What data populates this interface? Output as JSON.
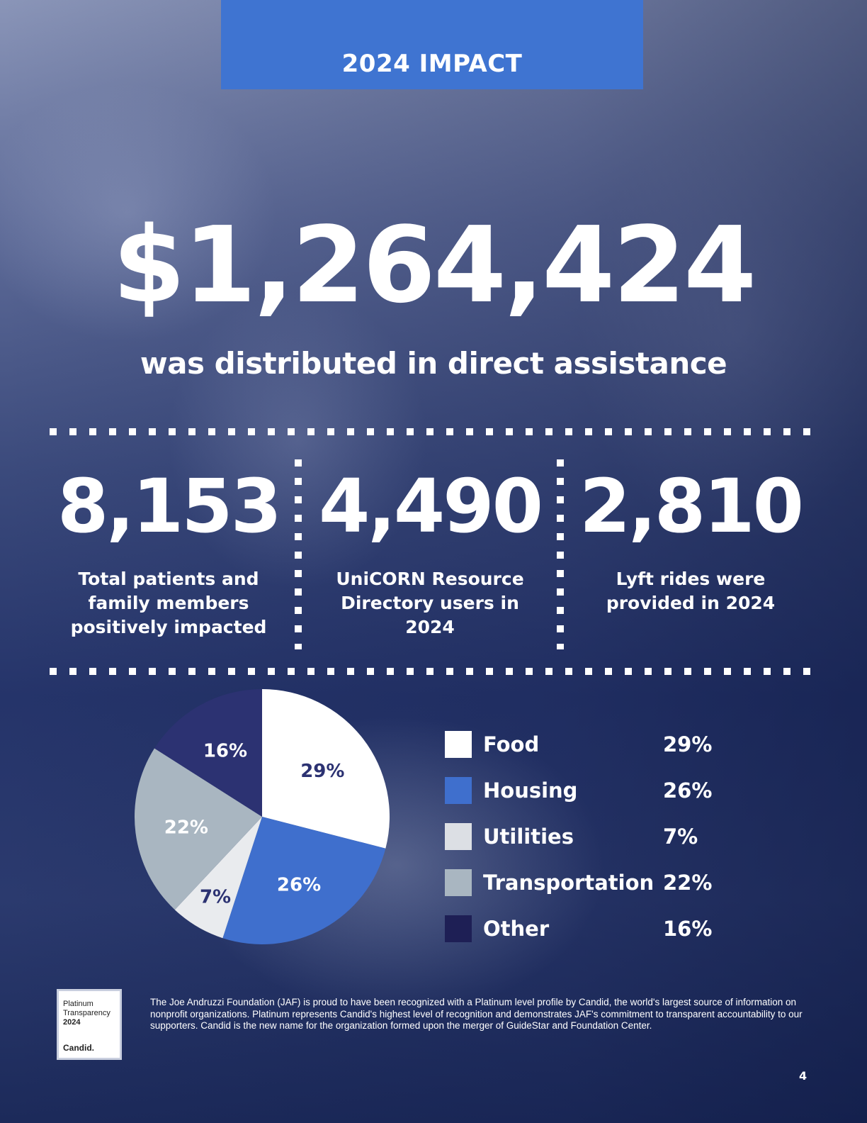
{
  "banner": {
    "title": "2024 IMPACT"
  },
  "headline": {
    "amount": "$1,264,424",
    "subtitle": "was distributed in direct assistance"
  },
  "stats": [
    {
      "value": "8,153",
      "label": "Total patients and family members positively impacted"
    },
    {
      "value": "4,490",
      "label": "UniCORN Resource Directory users in 2024"
    },
    {
      "value": "2,810",
      "label": "Lyft rides were provided in 2024"
    }
  ],
  "chart_data": {
    "type": "pie",
    "categories": [
      "Food",
      "Housing",
      "Utilities",
      "Transportation",
      "Other"
    ],
    "values": [
      29,
      26,
      7,
      22,
      16
    ],
    "labels": [
      "29%",
      "26%",
      "7%",
      "22%",
      "16%"
    ],
    "colors": [
      "#ffffff",
      "#3f6fcd",
      "#e9ebee",
      "#a9b6c1",
      "#2c3272"
    ],
    "label_colors": [
      "#2c3272",
      "#ffffff",
      "#2c3272",
      "#ffffff",
      "#ffffff"
    ],
    "legend": "right"
  },
  "legend": [
    {
      "label": "Food",
      "pct": "29%",
      "color": "#ffffff"
    },
    {
      "label": "Housing",
      "pct": "26%",
      "color": "#3f6fcd"
    },
    {
      "label": "Utilities",
      "pct": "7%",
      "color": "#dcdfe4"
    },
    {
      "label": "Transportation",
      "pct": "22%",
      "color": "#a9b6c1"
    },
    {
      "label": "Other",
      "pct": "16%",
      "color": "#1e1f55"
    }
  ],
  "candid_seal": {
    "line1": "Platinum",
    "line2": "Transparency",
    "line3": "2024",
    "brand": "Candid."
  },
  "footnote": "The Joe Andruzzi Foundation (JAF) is proud to have been recognized with a Platinum level profile by Candid, the world's largest source of information on nonprofit organizations. Platinum represents Candid's highest level of recognition and demonstrates JAF's commitment to transparent accountability to our supporters. Candid is the new name for the organization formed upon the merger of GuideStar and Foundation Center.",
  "page_number": "4"
}
